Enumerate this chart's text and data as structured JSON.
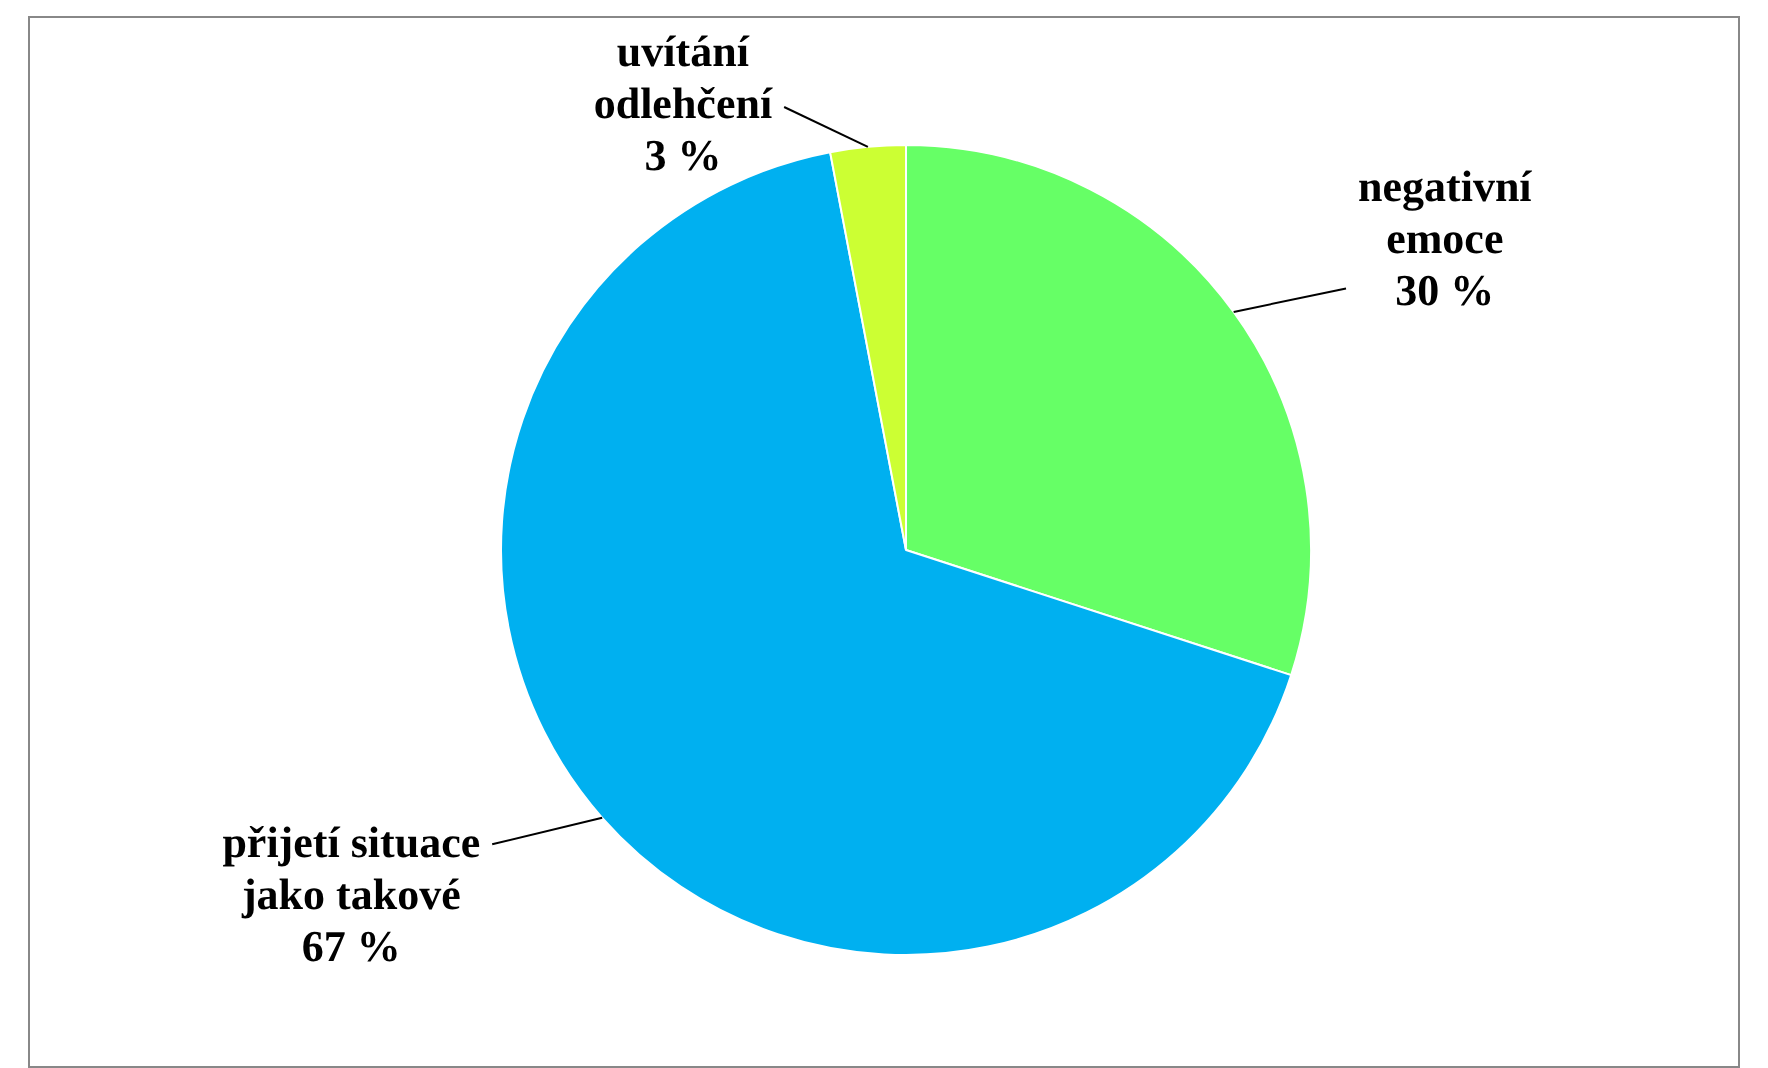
{
  "chart_data": {
    "type": "pie",
    "categories": [
      "negativní emoce",
      "přijetí situace jako takové",
      "uvítání odlehčení"
    ],
    "values": [
      30,
      67,
      3
    ],
    "value_labels": [
      "30 %",
      "67 %",
      "3 %"
    ],
    "colors": [
      "#66ff66",
      "#00b0f0",
      "#ccff33"
    ],
    "legend": false
  }
}
